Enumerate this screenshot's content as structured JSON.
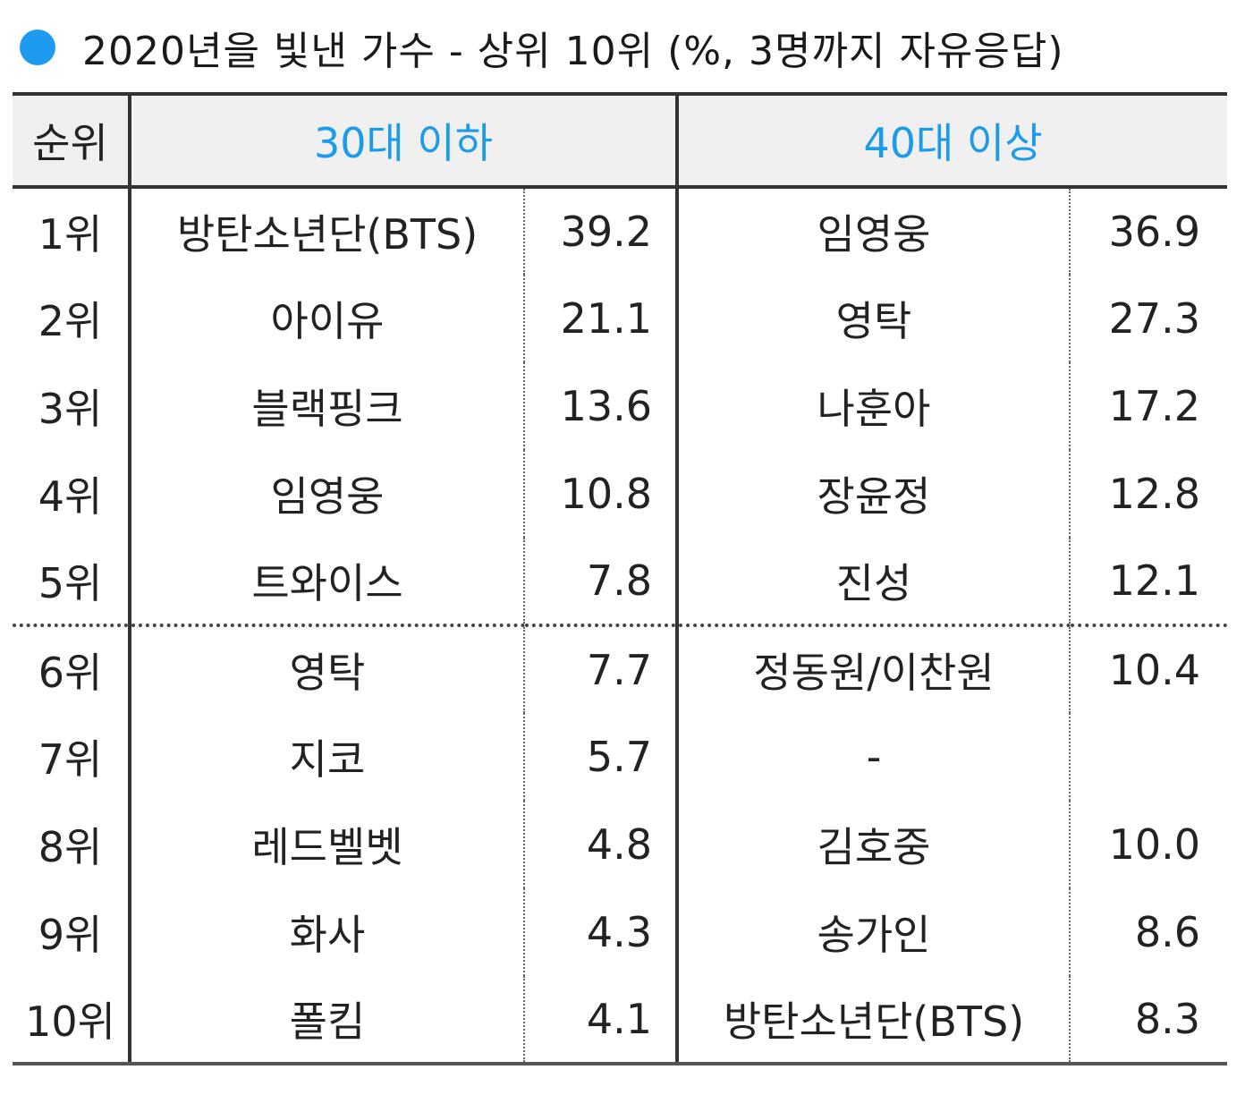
{
  "title": {
    "text": "2020년을 빛낸 가수 - 상위 10위 (%, 3명까지 자유응답)",
    "bullet_color": "#1e9bf0"
  },
  "table": {
    "header": {
      "rank": "순위",
      "group_30": "30대 이하",
      "group_40": "40대 이상",
      "group_color": "#1c9ce8"
    },
    "rows": [
      {
        "rank": "1위",
        "name30": "방탄소년단(BTS)",
        "val30": "39.2",
        "name40": "임영웅",
        "val40": "36.9"
      },
      {
        "rank": "2위",
        "name30": "아이유",
        "val30": "21.1",
        "name40": "영탁",
        "val40": "27.3"
      },
      {
        "rank": "3위",
        "name30": "블랙핑크",
        "val30": "13.6",
        "name40": "나훈아",
        "val40": "17.2"
      },
      {
        "rank": "4위",
        "name30": "임영웅",
        "val30": "10.8",
        "name40": "장윤정",
        "val40": "12.8"
      },
      {
        "rank": "5위",
        "name30": "트와이스",
        "val30": "7.8",
        "name40": "진성",
        "val40": "12.1"
      },
      {
        "rank": "6위",
        "name30": "영탁",
        "val30": "7.7",
        "name40": "정동원/이찬원",
        "val40": "10.4"
      },
      {
        "rank": "7위",
        "name30": "지코",
        "val30": "5.7",
        "name40": "-",
        "val40": ""
      },
      {
        "rank": "8위",
        "name30": "레드벨벳",
        "val30": "4.8",
        "name40": "김호중",
        "val40": "10.0"
      },
      {
        "rank": "9위",
        "name30": "화사",
        "val30": "4.3",
        "name40": "송가인",
        "val40": "8.6"
      },
      {
        "rank": "10위",
        "name30": "폴킴",
        "val30": "4.1",
        "name40": "방탄소년단(BTS)",
        "val40": "8.3"
      }
    ]
  }
}
